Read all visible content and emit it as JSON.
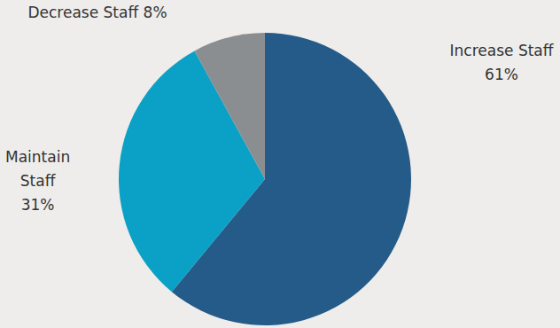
{
  "chart_data": {
    "type": "pie",
    "categories": [
      "Increase Staff",
      "Maintain Staff",
      "Decrease Staff"
    ],
    "values": [
      61,
      31,
      8
    ],
    "value_labels": [
      "61%",
      "31%",
      "8%"
    ],
    "colors": [
      "#255b88",
      "#0ba0c5",
      "#8b8e91"
    ],
    "data_labels": true
  }
}
